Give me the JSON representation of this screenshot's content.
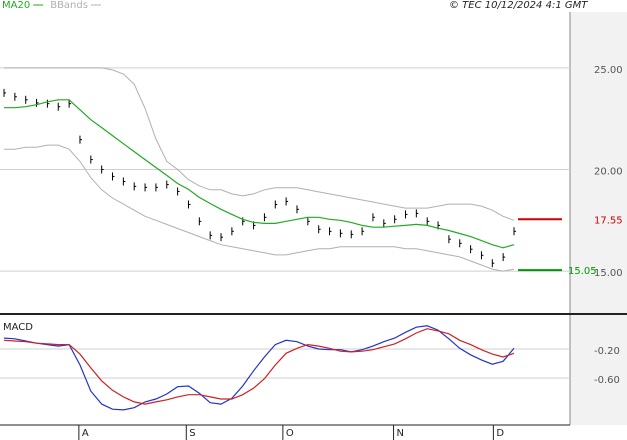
{
  "header": {
    "copyright": "© TEC 10/12/2024 4:1 GMT"
  },
  "chart_data": [
    {
      "type": "line",
      "xlim": [
        0,
        47
      ],
      "ylim": [
        12.94,
        27.75
      ],
      "yticks": [
        {
          "value": 25,
          "label": "25.00"
        },
        {
          "value": 20,
          "label": "20.00"
        },
        {
          "value": 15,
          "label": "15.00"
        }
      ],
      "grid": true,
      "series": [
        {
          "style": "bars",
          "color": "#000000",
          "values": [
            23.77,
            23.58,
            23.43,
            23.28,
            23.24,
            23.09,
            23.24,
            21.47,
            20.49,
            20.0,
            19.66,
            19.41,
            19.17,
            19.12,
            19.12,
            19.26,
            18.92,
            18.28,
            17.45,
            16.76,
            16.67,
            16.96,
            17.45,
            17.25,
            17.65,
            18.28,
            18.43,
            18.04,
            17.45,
            17.06,
            16.96,
            16.86,
            16.81,
            16.96,
            17.65,
            17.35,
            17.55,
            17.79,
            17.84,
            17.45,
            17.25,
            16.57,
            16.37,
            16.08,
            15.78,
            15.39,
            15.69,
            16.96
          ]
        },
        {
          "name": "MA20",
          "style": "line",
          "color": "#22aa22",
          "values": [
            23.04,
            23.04,
            23.09,
            23.19,
            23.33,
            23.43,
            23.43,
            22.94,
            22.45,
            22.06,
            21.67,
            21.27,
            20.88,
            20.49,
            20.1,
            19.71,
            19.31,
            19.02,
            18.63,
            18.33,
            18.04,
            17.79,
            17.55,
            17.4,
            17.35,
            17.35,
            17.45,
            17.55,
            17.65,
            17.65,
            17.55,
            17.5,
            17.4,
            17.25,
            17.16,
            17.16,
            17.21,
            17.25,
            17.3,
            17.25,
            17.11,
            17.0,
            16.85,
            16.7,
            16.5,
            16.3,
            16.15,
            16.3
          ]
        },
        {
          "name": "BBands",
          "style": "band",
          "color": "#b0b0b0",
          "upper": [
            25.0,
            25.0,
            25.0,
            25.0,
            25.0,
            25.0,
            25.0,
            25.0,
            25.0,
            25.0,
            24.9,
            24.7,
            24.2,
            23.0,
            21.5,
            20.4,
            20.0,
            19.5,
            19.2,
            19.0,
            19.0,
            18.8,
            18.7,
            18.8,
            19.0,
            19.1,
            19.1,
            19.1,
            19.0,
            18.9,
            18.8,
            18.7,
            18.6,
            18.5,
            18.4,
            18.3,
            18.2,
            18.1,
            18.1,
            18.1,
            18.2,
            18.3,
            18.3,
            18.3,
            18.2,
            18.0,
            17.7,
            17.5
          ],
          "lower": [
            21.0,
            21.0,
            21.1,
            21.1,
            21.2,
            21.2,
            21.0,
            20.4,
            19.6,
            19.0,
            18.6,
            18.3,
            18.0,
            17.7,
            17.5,
            17.3,
            17.1,
            16.9,
            16.7,
            16.5,
            16.3,
            16.2,
            16.1,
            16.0,
            15.9,
            15.8,
            15.8,
            15.9,
            16.0,
            16.1,
            16.1,
            16.2,
            16.2,
            16.2,
            16.2,
            16.2,
            16.2,
            16.1,
            16.1,
            16.0,
            15.9,
            15.8,
            15.7,
            15.5,
            15.3,
            15.1,
            15.0,
            15.1
          ]
        }
      ],
      "levels": [
        {
          "value": 17.55,
          "color": "#cc0000"
        },
        {
          "value": 15.05,
          "color": "#009900"
        }
      ]
    },
    {
      "type": "line",
      "title": "MACD",
      "xlim": [
        0,
        47
      ],
      "ylim": [
        -1.248,
        0.255
      ],
      "yticks": [
        {
          "value": -0.2,
          "label": "-0.20"
        },
        {
          "value": -0.6,
          "label": "-0.60"
        }
      ],
      "grid": true,
      "xticks": [
        {
          "value": 6.9,
          "label": "A"
        },
        {
          "value": 16.8,
          "label": "S"
        },
        {
          "value": 25.7,
          "label": "O"
        },
        {
          "value": 35.9,
          "label": "N"
        },
        {
          "value": 45.1,
          "label": "D"
        }
      ],
      "series": [
        {
          "style": "line",
          "color": "#2233cc",
          "values": [
            -0.05,
            -0.06,
            -0.09,
            -0.12,
            -0.14,
            -0.16,
            -0.14,
            -0.42,
            -0.78,
            -0.96,
            -1.03,
            -1.04,
            -1.01,
            -0.93,
            -0.89,
            -0.82,
            -0.72,
            -0.71,
            -0.81,
            -0.94,
            -0.96,
            -0.88,
            -0.71,
            -0.5,
            -0.31,
            -0.14,
            -0.08,
            -0.1,
            -0.16,
            -0.2,
            -0.21,
            -0.21,
            -0.24,
            -0.21,
            -0.16,
            -0.1,
            -0.05,
            0.03,
            0.1,
            0.12,
            0.06,
            -0.06,
            -0.19,
            -0.28,
            -0.35,
            -0.41,
            -0.37,
            -0.19
          ]
        },
        {
          "style": "line",
          "color": "#cc2222",
          "values": [
            -0.08,
            -0.09,
            -0.1,
            -0.12,
            -0.13,
            -0.14,
            -0.14,
            -0.27,
            -0.46,
            -0.64,
            -0.77,
            -0.86,
            -0.93,
            -0.96,
            -0.93,
            -0.9,
            -0.86,
            -0.83,
            -0.83,
            -0.86,
            -0.89,
            -0.89,
            -0.83,
            -0.74,
            -0.61,
            -0.42,
            -0.26,
            -0.19,
            -0.14,
            -0.16,
            -0.19,
            -0.23,
            -0.24,
            -0.23,
            -0.21,
            -0.17,
            -0.13,
            -0.06,
            0.02,
            0.08,
            0.05,
            0.01,
            -0.08,
            -0.14,
            -0.21,
            -0.27,
            -0.31,
            -0.26
          ]
        }
      ]
    }
  ]
}
